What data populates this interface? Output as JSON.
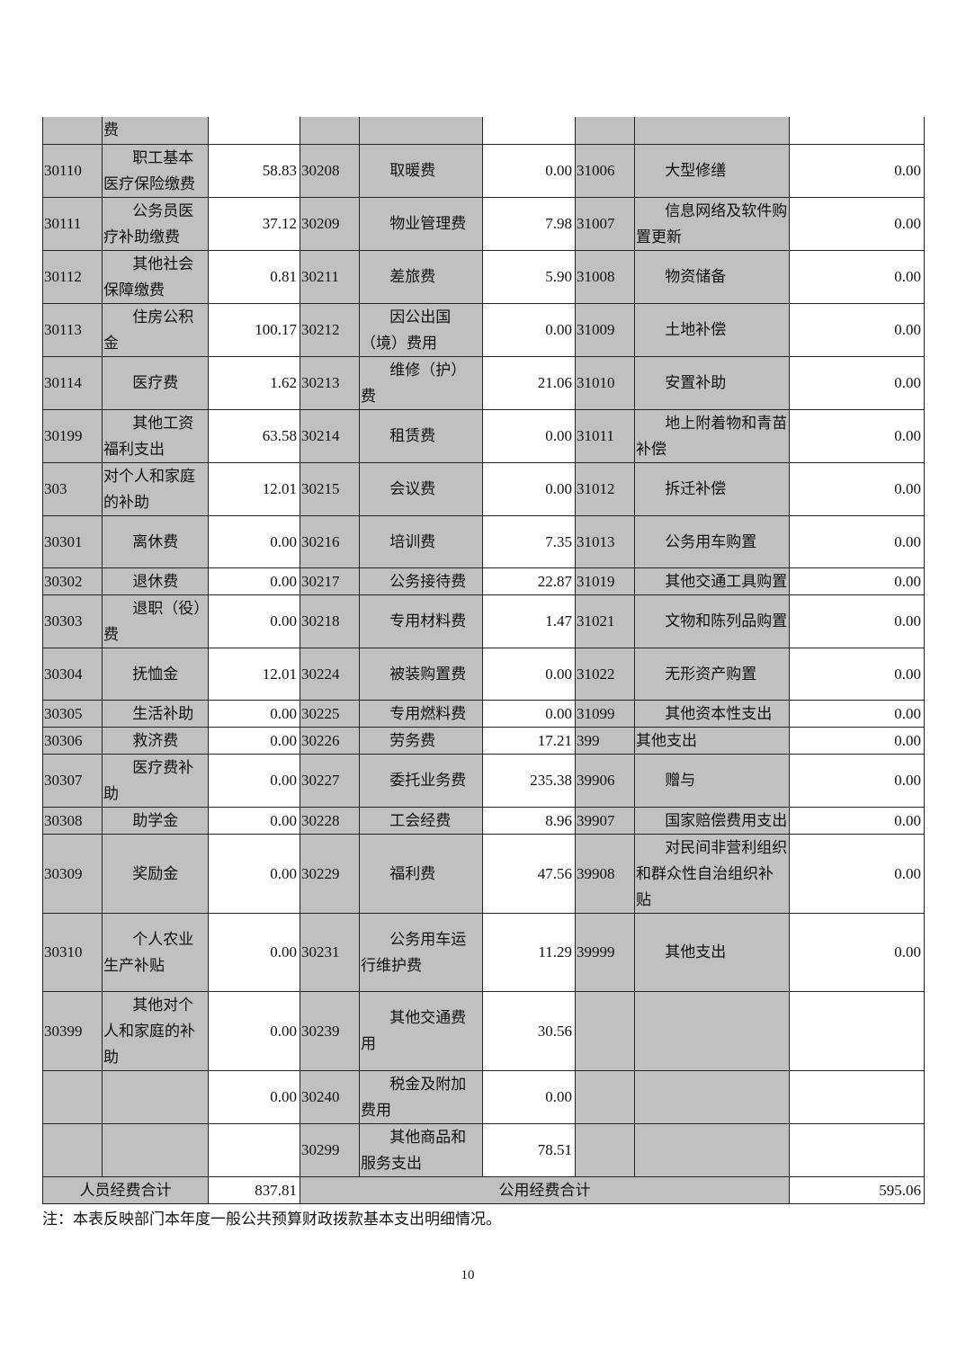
{
  "table": {
    "rows": [
      [
        "",
        "费",
        "",
        "",
        "",
        "",
        "",
        "",
        ""
      ],
      [
        "30110",
        "职工基本医疗保险缴费",
        "58.83",
        "30208",
        "取暖费",
        "0.00",
        "31006",
        "大型修缮",
        "0.00"
      ],
      [
        "30111",
        "公务员医疗补助缴费",
        "37.12",
        "30209",
        "物业管理费",
        "7.98",
        "31007",
        "信息网络及软件购置更新",
        "0.00"
      ],
      [
        "30112",
        "其他社会保障缴费",
        "0.81",
        "30211",
        "差旅费",
        "5.90",
        "31008",
        "物资储备",
        "0.00"
      ],
      [
        "30113",
        "住房公积金",
        "100.17",
        "30212",
        "因公出国（境）费用",
        "0.00",
        "31009",
        "土地补偿",
        "0.00"
      ],
      [
        "30114",
        "医疗费",
        "1.62",
        "30213",
        "维修（护）费",
        "21.06",
        "31010",
        "安置补助",
        "0.00"
      ],
      [
        "30199",
        "其他工资福利支出",
        "63.58",
        "30214",
        "租赁费",
        "0.00",
        "31011",
        "地上附着物和青苗补偿",
        "0.00"
      ],
      [
        "303",
        "对个人和家庭的补助",
        "12.01",
        "30215",
        "会议费",
        "0.00",
        "31012",
        "拆迁补偿",
        "0.00"
      ],
      [
        "30301",
        "离休费",
        "0.00",
        "30216",
        "培训费",
        "7.35",
        "31013",
        "公务用车购置",
        "0.00"
      ],
      [
        "30302",
        "退休费",
        "0.00",
        "30217",
        "公务接待费",
        "22.87",
        "31019",
        "其他交通工具购置",
        "0.00"
      ],
      [
        "30303",
        "退职（役）费",
        "0.00",
        "30218",
        "专用材料费",
        "1.47",
        "31021",
        "文物和陈列品购置",
        "0.00"
      ],
      [
        "30304",
        "抚恤金",
        "12.01",
        "30224",
        "被装购置费",
        "0.00",
        "31022",
        "无形资产购置",
        "0.00"
      ],
      [
        "30305",
        "生活补助",
        "0.00",
        "30225",
        "专用燃料费",
        "0.00",
        "31099",
        "其他资本性支出",
        "0.00"
      ],
      [
        "30306",
        "救济费",
        "0.00",
        "30226",
        "劳务费",
        "17.21",
        "399",
        "其他支出",
        "0.00"
      ],
      [
        "30307",
        "医疗费补助",
        "0.00",
        "30227",
        "委托业务费",
        "235.38",
        "39906",
        "赠与",
        "0.00"
      ],
      [
        "30308",
        "助学金",
        "0.00",
        "30228",
        "工会经费",
        "8.96",
        "39907",
        "国家赔偿费用支出",
        "0.00"
      ],
      [
        "30309",
        "奖励金",
        "0.00",
        "30229",
        "福利费",
        "47.56",
        "39908",
        "对民间非营利组织和群众性自治组织补贴",
        "0.00"
      ],
      [
        "30310",
        "个人农业生产补贴",
        "0.00",
        "30231",
        "公务用车运行维护费",
        "11.29",
        "39999",
        "其他支出",
        "0.00"
      ],
      [
        "30399",
        "其他对个人和家庭的补助",
        "0.00",
        "30239",
        "其他交通费用",
        "30.56",
        "",
        "",
        ""
      ],
      [
        "",
        "",
        "0.00",
        "30240",
        "税金及附加费用",
        "0.00",
        "",
        "",
        ""
      ],
      [
        "",
        "",
        "",
        "30299",
        "其他商品和服务支出",
        "78.51",
        "",
        "",
        ""
      ]
    ],
    "totals": {
      "personnel_label": "人员经费合计",
      "personnel_value": "837.81",
      "public_label": "公用经费合计",
      "public_value": "595.06"
    }
  },
  "note": "注：本表反映部门本年度一般公共预算财政拨款基本支出明细情况。",
  "page_number": "10",
  "colors": {
    "shaded_cell": "#c0c0c0",
    "border": "#222222"
  }
}
